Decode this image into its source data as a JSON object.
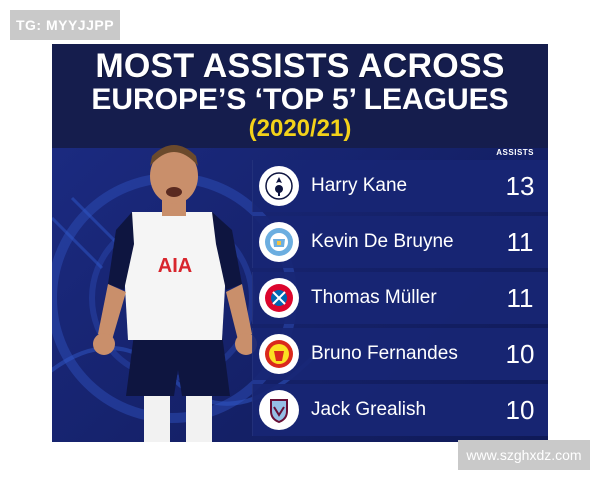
{
  "watermarks": {
    "top_left": "TG: MYYJJPP",
    "bottom_right": "www.szghxdz.com"
  },
  "header": {
    "line1": "MOST ASSISTS ACROSS",
    "line2": "EUROPE’S ‘TOP 5’ LEAGUES",
    "year": "(2020/21)"
  },
  "table": {
    "column_label": "ASSISTS",
    "rows": [
      {
        "player": "Harry Kane",
        "assists": "13",
        "club_icon": "tottenham-crest-icon"
      },
      {
        "player": "Kevin De Bruyne",
        "assists": "11",
        "club_icon": "man-city-crest-icon"
      },
      {
        "player": "Thomas Müller",
        "assists": "11",
        "club_icon": "bayern-crest-icon"
      },
      {
        "player": "Bruno Fernandes",
        "assists": "10",
        "club_icon": "man-utd-crest-icon"
      },
      {
        "player": "Jack Grealish",
        "assists": "10",
        "club_icon": "aston-villa-crest-icon"
      }
    ]
  },
  "player_photo": {
    "shirt_text": "AIA"
  },
  "colors": {
    "navy": "#151d4d",
    "panel": "#1b2a80",
    "year_accent": "#f3d21a"
  }
}
